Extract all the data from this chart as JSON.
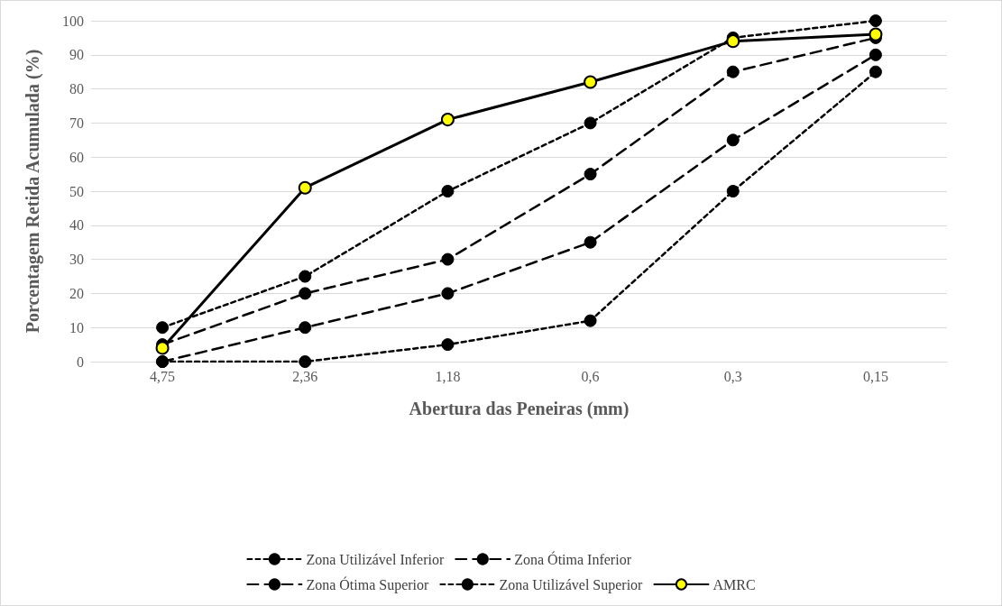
{
  "chart_data": {
    "type": "line",
    "xlabel": "Abertura das Peneiras (mm)",
    "ylabel": "Porcentagem Retida Acumulada (%)",
    "categories": [
      "4,75",
      "2,36",
      "1,18",
      "0,6",
      "0,3",
      "0,15"
    ],
    "series": [
      {
        "name": "Zona Utilizável Inferior",
        "color": "#000000",
        "line_style": "dotted",
        "values": [
          0,
          0,
          5,
          12,
          50,
          85
        ]
      },
      {
        "name": "Zona Ótima Inferior",
        "color": "#000000",
        "line_style": "dashed",
        "values": [
          0,
          10,
          20,
          35,
          65,
          90
        ]
      },
      {
        "name": "Zona Ótima Superior",
        "color": "#000000",
        "line_style": "dashed",
        "values": [
          5,
          20,
          30,
          55,
          85,
          95
        ]
      },
      {
        "name": "Zona Utilizável Superior",
        "color": "#000000",
        "line_style": "dotted",
        "values": [
          10,
          25,
          50,
          70,
          95,
          100
        ]
      },
      {
        "name": "AMRC",
        "color": "#000000",
        "line_style": "solid",
        "values": [
          4,
          51,
          71,
          82,
          94,
          96
        ]
      }
    ],
    "ylim": [
      0,
      100
    ],
    "yticks": [
      0,
      10,
      20,
      30,
      40,
      50,
      60,
      70,
      80,
      90,
      100
    ],
    "grid": "y",
    "legend": "bottom",
    "marker": "circle"
  }
}
